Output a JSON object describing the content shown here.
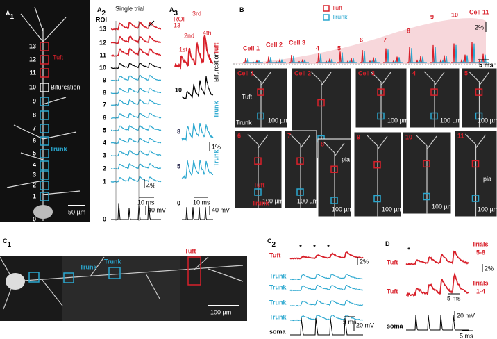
{
  "panels": {
    "A1": {
      "label": "A",
      "sub": "1",
      "roi_labels": [
        "13",
        "12",
        "11",
        "10",
        "9",
        "8",
        "7",
        "6",
        "5",
        "4",
        "3",
        "2",
        "1",
        "0"
      ],
      "tuft": "Tuft",
      "bifurcation": "Bifurcation",
      "trunk": "Trunk",
      "scale": "50 µm"
    },
    "A2": {
      "label": "A",
      "sub": "2",
      "title": "Single trial",
      "roi": "ROI",
      "rows": [
        "13",
        "12",
        "11",
        "10",
        "9",
        "8",
        "7",
        "6",
        "5",
        "4",
        "3",
        "2",
        "1",
        "0"
      ],
      "scale_pct": "4%",
      "scale_ms": "10 ms",
      "scale_mv": "40 mV"
    },
    "A3": {
      "label": "A",
      "sub": "3",
      "roi": "ROI",
      "roi_top": "13",
      "spikes": [
        "1st",
        "2nd",
        "3rd",
        "4th"
      ],
      "tuft": "Tuft",
      "row10": "10",
      "bifurcation": "Bifurcation",
      "row8": "8",
      "trunk1": "Trunk",
      "row5": "5",
      "trunk2": "Trunk",
      "row0": "0",
      "scale_pct": "1%",
      "scale_ms": "10 ms",
      "scale_mv": "40 mV"
    },
    "B": {
      "label": "B",
      "legend": [
        "Tuft",
        "Trunk"
      ],
      "scale_pct": "2%",
      "scale_ms": "5 ms",
      "cells": [
        "Cell 1",
        "Cell 2",
        "Cell 3",
        "4",
        "5",
        "6",
        "7",
        "8",
        "9",
        "10",
        "Cell 11"
      ],
      "images": [
        "Cell 1",
        "Cell 2",
        "Cell 3",
        "4",
        "5",
        "6",
        "7",
        "8",
        "9",
        "10",
        "11"
      ],
      "scale": "100 µm",
      "pia": "pia",
      "tuft": "Tuft",
      "trunk": "Trunk"
    },
    "C1": {
      "label": "C",
      "sub": "1",
      "trunk": "Trunk",
      "tuft": "Tuft",
      "scale": "100 µm"
    },
    "C2": {
      "label": "C",
      "sub": "2",
      "star": "*",
      "tuft": "Tuft",
      "trunk": "Trunk",
      "scale_pct": "2%",
      "scale_ms": "5 ms",
      "scale_mv": "20 mV",
      "soma": "soma"
    },
    "D": {
      "label": "D",
      "star": "*",
      "tuft": "Tuft",
      "trials_a": [
        "Trials",
        "5-8"
      ],
      "trials_b": [
        "Trials",
        "1-4"
      ],
      "scale_pct": "2%",
      "scale_ms": "5 ms",
      "scale_mv": "20 mV",
      "soma": "soma"
    }
  }
}
